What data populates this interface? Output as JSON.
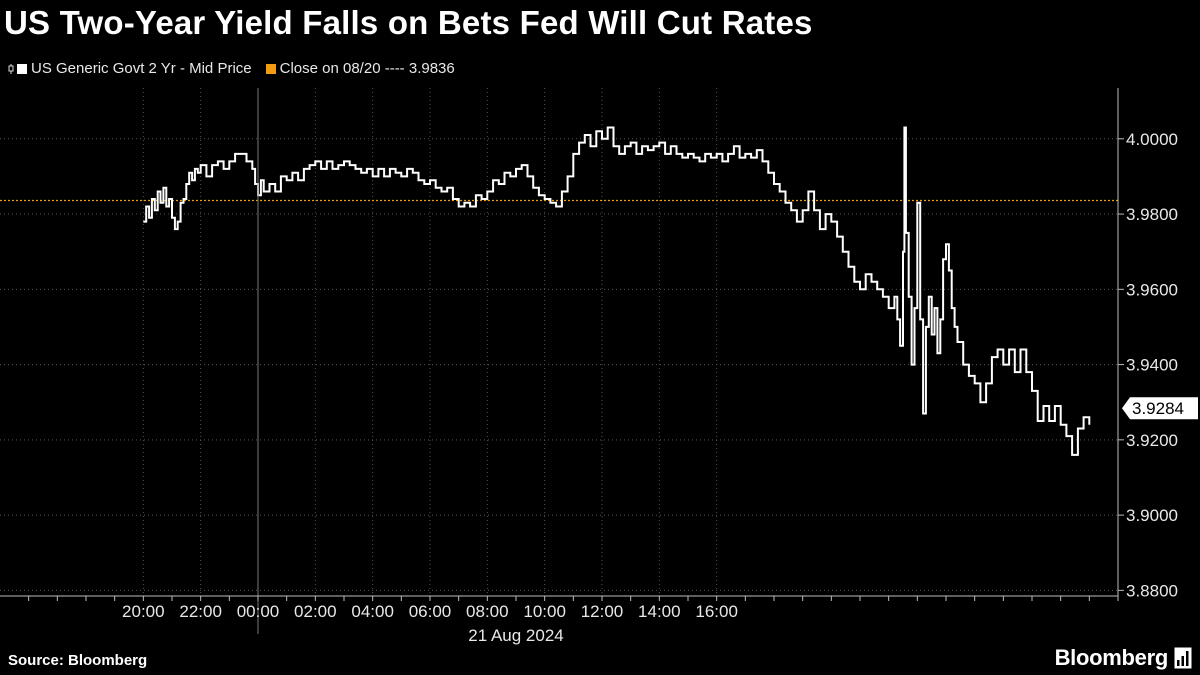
{
  "header": {
    "title": "US Two-Year Yield Falls on Bets Fed Will Cut Rates"
  },
  "legend": {
    "series_label": "US Generic Govt 2 Yr - Mid Price",
    "close_label": "Close on 08/20 ---- 3.9836"
  },
  "footer": {
    "source": "Source: Bloomberg",
    "brand": "Bloomberg"
  },
  "colors": {
    "background": "#000000",
    "series": "#ffffff",
    "close_line": "#f39c12",
    "grid": "#555555"
  },
  "chart_data": {
    "type": "line",
    "x_unit": "hours since 20:00 on 20 Aug 2024",
    "xlim": [
      -5,
      34
    ],
    "ylim": [
      3.8785,
      4.0135
    ],
    "y_ticks": [
      3.88,
      3.9,
      3.92,
      3.94,
      3.96,
      3.98,
      4.0
    ],
    "y_tick_labels": [
      "3.8800",
      "3.9000",
      "3.9200",
      "3.9400",
      "3.9600",
      "3.9800",
      "4.0000"
    ],
    "x_ticks": [
      0,
      2,
      4,
      6,
      8,
      10,
      12,
      14,
      16,
      18,
      20
    ],
    "x_tick_labels": [
      "20:00",
      "22:00",
      "00:00",
      "02:00",
      "04:00",
      "06:00",
      "08:00",
      "10:00",
      "12:00",
      "14:00",
      "16:00"
    ],
    "x_date_label": "21 Aug 2024",
    "reference_line": {
      "value": 3.9836
    },
    "last_value": 3.9284,
    "last_value_label": "3.9284",
    "grid": true,
    "legend_position": "top-left",
    "series": [
      {
        "name": "US Generic Govt 2 Yr - Mid Price",
        "points": [
          [
            0.0,
            3.978
          ],
          [
            0.1,
            3.982
          ],
          [
            0.2,
            3.979
          ],
          [
            0.3,
            3.984
          ],
          [
            0.4,
            3.981
          ],
          [
            0.5,
            3.986
          ],
          [
            0.6,
            3.983
          ],
          [
            0.7,
            3.987
          ],
          [
            0.8,
            3.982
          ],
          [
            0.9,
            3.984
          ],
          [
            1.0,
            3.979
          ],
          [
            1.1,
            3.976
          ],
          [
            1.2,
            3.978
          ],
          [
            1.3,
            3.983
          ],
          [
            1.4,
            3.984
          ],
          [
            1.5,
            3.988
          ],
          [
            1.6,
            3.991
          ],
          [
            1.7,
            3.989
          ],
          [
            1.8,
            3.992
          ],
          [
            1.9,
            3.991
          ],
          [
            2.0,
            3.993
          ],
          [
            2.2,
            3.99
          ],
          [
            2.4,
            3.993
          ],
          [
            2.6,
            3.994
          ],
          [
            2.8,
            3.992
          ],
          [
            3.0,
            3.994
          ],
          [
            3.2,
            3.996
          ],
          [
            3.4,
            3.996
          ],
          [
            3.6,
            3.994
          ],
          [
            3.8,
            3.992
          ],
          [
            3.9,
            3.988
          ],
          [
            4.0,
            3.985
          ],
          [
            4.1,
            3.989
          ],
          [
            4.2,
            3.986
          ],
          [
            4.4,
            3.988
          ],
          [
            4.6,
            3.986
          ],
          [
            4.8,
            3.99
          ],
          [
            5.0,
            3.989
          ],
          [
            5.2,
            3.991
          ],
          [
            5.4,
            3.989
          ],
          [
            5.6,
            3.992
          ],
          [
            5.8,
            3.993
          ],
          [
            6.0,
            3.994
          ],
          [
            6.2,
            3.992
          ],
          [
            6.4,
            3.994
          ],
          [
            6.6,
            3.992
          ],
          [
            6.8,
            3.993
          ],
          [
            7.0,
            3.994
          ],
          [
            7.2,
            3.993
          ],
          [
            7.4,
            3.992
          ],
          [
            7.6,
            3.991
          ],
          [
            7.8,
            3.992
          ],
          [
            8.0,
            3.99
          ],
          [
            8.2,
            3.992
          ],
          [
            8.4,
            3.99
          ],
          [
            8.6,
            3.992
          ],
          [
            8.8,
            3.991
          ],
          [
            9.0,
            3.99
          ],
          [
            9.2,
            3.992
          ],
          [
            9.4,
            3.991
          ],
          [
            9.6,
            3.989
          ],
          [
            9.8,
            3.988
          ],
          [
            10.0,
            3.989
          ],
          [
            10.2,
            3.987
          ],
          [
            10.4,
            3.986
          ],
          [
            10.6,
            3.987
          ],
          [
            10.8,
            3.984
          ],
          [
            11.0,
            3.982
          ],
          [
            11.2,
            3.983
          ],
          [
            11.4,
            3.982
          ],
          [
            11.6,
            3.985
          ],
          [
            11.8,
            3.984
          ],
          [
            12.0,
            3.986
          ],
          [
            12.2,
            3.989
          ],
          [
            12.4,
            3.988
          ],
          [
            12.6,
            3.991
          ],
          [
            12.8,
            3.99
          ],
          [
            13.0,
            3.992
          ],
          [
            13.2,
            3.993
          ],
          [
            13.4,
            3.99
          ],
          [
            13.6,
            3.987
          ],
          [
            13.8,
            3.985
          ],
          [
            14.0,
            3.984
          ],
          [
            14.2,
            3.983
          ],
          [
            14.4,
            3.982
          ],
          [
            14.6,
            3.986
          ],
          [
            14.8,
            3.99
          ],
          [
            15.0,
            3.996
          ],
          [
            15.2,
            3.999
          ],
          [
            15.4,
            4.001
          ],
          [
            15.6,
            3.998
          ],
          [
            15.8,
            4.002
          ],
          [
            16.0,
            4.0
          ],
          [
            16.2,
            4.003
          ],
          [
            16.4,
            3.998
          ],
          [
            16.6,
            3.996
          ],
          [
            16.8,
            3.998
          ],
          [
            17.0,
            3.999
          ],
          [
            17.2,
            3.996
          ],
          [
            17.4,
            3.998
          ],
          [
            17.6,
            3.997
          ],
          [
            17.8,
            3.998
          ],
          [
            18.0,
            3.999
          ],
          [
            18.2,
            3.996
          ],
          [
            18.4,
            3.998
          ],
          [
            18.6,
            3.996
          ],
          [
            18.8,
            3.995
          ],
          [
            19.0,
            3.996
          ],
          [
            19.2,
            3.995
          ],
          [
            19.4,
            3.994
          ],
          [
            19.6,
            3.996
          ],
          [
            19.8,
            3.995
          ],
          [
            20.0,
            3.996
          ],
          [
            20.2,
            3.994
          ],
          [
            20.4,
            3.996
          ],
          [
            20.6,
            3.998
          ],
          [
            20.8,
            3.995
          ],
          [
            21.0,
            3.996
          ],
          [
            21.2,
            3.995
          ],
          [
            21.4,
            3.997
          ],
          [
            21.6,
            3.994
          ],
          [
            21.8,
            3.991
          ],
          [
            22.0,
            3.988
          ],
          [
            22.2,
            3.986
          ],
          [
            22.4,
            3.983
          ],
          [
            22.6,
            3.981
          ],
          [
            22.8,
            3.978
          ],
          [
            23.0,
            3.981
          ],
          [
            23.2,
            3.986
          ],
          [
            23.4,
            3.981
          ],
          [
            23.6,
            3.976
          ],
          [
            23.8,
            3.98
          ],
          [
            24.0,
            3.978
          ],
          [
            24.2,
            3.974
          ],
          [
            24.4,
            3.97
          ],
          [
            24.6,
            3.966
          ],
          [
            24.8,
            3.962
          ],
          [
            25.0,
            3.96
          ],
          [
            25.2,
            3.964
          ],
          [
            25.4,
            3.962
          ],
          [
            25.6,
            3.96
          ],
          [
            25.8,
            3.958
          ],
          [
            26.0,
            3.955
          ],
          [
            26.2,
            3.958
          ],
          [
            26.3,
            3.952
          ],
          [
            26.4,
            3.945
          ],
          [
            26.5,
            3.97
          ],
          [
            26.55,
            4.003
          ],
          [
            26.6,
            3.975
          ],
          [
            26.7,
            3.958
          ],
          [
            26.8,
            3.94
          ],
          [
            26.9,
            3.955
          ],
          [
            27.0,
            3.983
          ],
          [
            27.1,
            3.952
          ],
          [
            27.2,
            3.927
          ],
          [
            27.3,
            3.95
          ],
          [
            27.4,
            3.958
          ],
          [
            27.5,
            3.948
          ],
          [
            27.6,
            3.955
          ],
          [
            27.7,
            3.943
          ],
          [
            27.8,
            3.952
          ],
          [
            27.9,
            3.968
          ],
          [
            28.0,
            3.972
          ],
          [
            28.1,
            3.965
          ],
          [
            28.2,
            3.955
          ],
          [
            28.3,
            3.95
          ],
          [
            28.4,
            3.946
          ],
          [
            28.6,
            3.94
          ],
          [
            28.8,
            3.937
          ],
          [
            29.0,
            3.935
          ],
          [
            29.2,
            3.93
          ],
          [
            29.4,
            3.935
          ],
          [
            29.6,
            3.942
          ],
          [
            29.8,
            3.944
          ],
          [
            30.0,
            3.94
          ],
          [
            30.2,
            3.944
          ],
          [
            30.4,
            3.938
          ],
          [
            30.6,
            3.944
          ],
          [
            30.8,
            3.938
          ],
          [
            31.0,
            3.933
          ],
          [
            31.2,
            3.925
          ],
          [
            31.4,
            3.929
          ],
          [
            31.6,
            3.925
          ],
          [
            31.8,
            3.929
          ],
          [
            32.0,
            3.924
          ],
          [
            32.2,
            3.921
          ],
          [
            32.4,
            3.916
          ],
          [
            32.6,
            3.923
          ],
          [
            32.8,
            3.926
          ],
          [
            33.0,
            3.924
          ]
        ]
      }
    ]
  }
}
